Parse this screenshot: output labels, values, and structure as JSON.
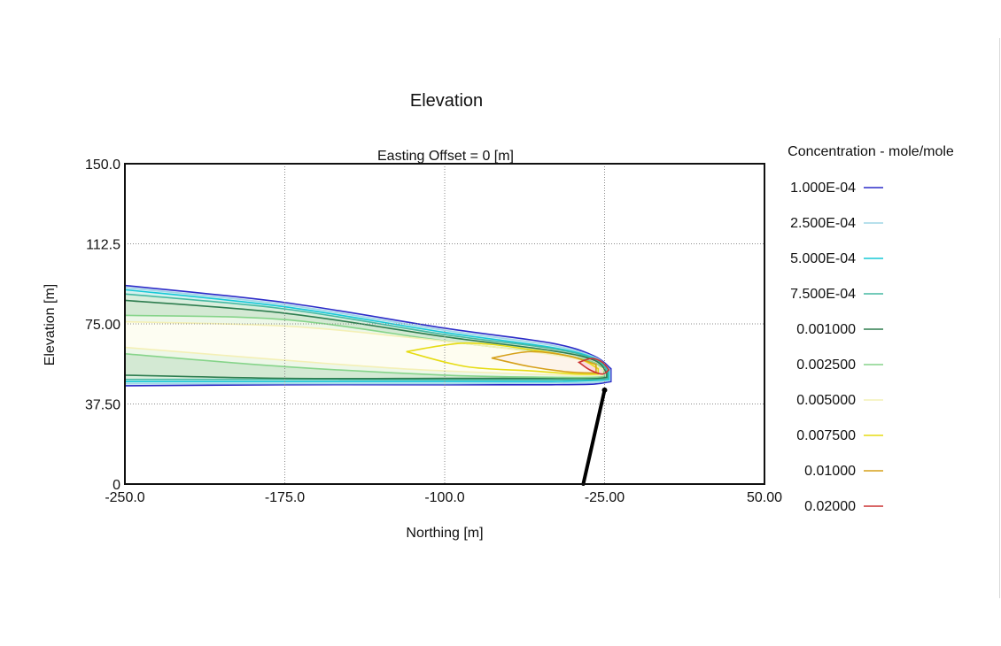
{
  "chart_data": {
    "type": "contour",
    "title": "Elevation",
    "subtitle": "Easting Offset = 0 [m]",
    "xlabel": "Northing [m]",
    "ylabel": "Elevation [m]",
    "xlim": [
      -250,
      50
    ],
    "ylim": [
      0,
      150
    ],
    "x_ticks": [
      "-250.0",
      "-175.0",
      "-100.0",
      "-25.00",
      "50.00"
    ],
    "x_tick_values": [
      -250,
      -175,
      -100,
      -25,
      50
    ],
    "y_ticks": [
      "0",
      "37.50",
      "75.00",
      "112.5",
      "150.0"
    ],
    "y_tick_values": [
      0,
      37.5,
      75,
      112.5,
      150
    ],
    "grid": true,
    "legend_position": "right",
    "legend_title": "Concentration - mole/mole",
    "legend": [
      {
        "label": "1.000E-04",
        "color": "#2b2bc8"
      },
      {
        "label": "2.500E-04",
        "color": "#9fd6e6"
      },
      {
        "label": "5.000E-04",
        "color": "#17c8d6"
      },
      {
        "label": "7.500E-04",
        "color": "#45b9a2"
      },
      {
        "label": "0.001000",
        "color": "#2e7d4f"
      },
      {
        "label": "0.002500",
        "color": "#86d48a"
      },
      {
        "label": "0.005000",
        "color": "#f4f0b6"
      },
      {
        "label": "0.007500",
        "color": "#e6dc14"
      },
      {
        "label": "0.01000",
        "color": "#d6a01a"
      },
      {
        "label": "0.02000",
        "color": "#cc3333"
      }
    ],
    "contours": [
      {
        "level": "1.000E-04",
        "color": "#2b2bc8",
        "fill": "#dfe9f7",
        "upper": [
          [
            -250,
            93
          ],
          [
            -175,
            85
          ],
          [
            -100,
            73
          ],
          [
            -50,
            66
          ],
          [
            -30,
            60
          ],
          [
            -22,
            54
          ]
        ],
        "lower": [
          [
            -250,
            46
          ],
          [
            -175,
            46.5
          ],
          [
            -100,
            46.5
          ],
          [
            -50,
            46.5
          ],
          [
            -30,
            46.8
          ],
          [
            -22,
            48
          ]
        ]
      },
      {
        "level": "2.500E-04",
        "color": "#9fd6e6",
        "fill": "#d6f1f4",
        "upper": [
          [
            -250,
            92
          ],
          [
            -175,
            84
          ],
          [
            -100,
            72
          ],
          [
            -50,
            65
          ],
          [
            -30,
            59.5
          ],
          [
            -22.5,
            53.5
          ]
        ],
        "lower": [
          [
            -250,
            47
          ],
          [
            -175,
            47
          ],
          [
            -100,
            47
          ],
          [
            -50,
            47.3
          ],
          [
            -30,
            47.5
          ],
          [
            -22.5,
            48.5
          ]
        ]
      },
      {
        "level": "5.000E-04",
        "color": "#17c8d6",
        "fill": "#d4f1ee",
        "upper": [
          [
            -250,
            91
          ],
          [
            -175,
            83
          ],
          [
            -100,
            71
          ],
          [
            -50,
            64
          ],
          [
            -30,
            59
          ],
          [
            -23,
            53
          ]
        ],
        "lower": [
          [
            -250,
            48
          ],
          [
            -175,
            48
          ],
          [
            -100,
            48
          ],
          [
            -50,
            48
          ],
          [
            -30,
            48.5
          ],
          [
            -23,
            49
          ]
        ]
      },
      {
        "level": "7.500E-04",
        "color": "#45b9a2",
        "fill": "#d9eedd",
        "upper": [
          [
            -250,
            89
          ],
          [
            -175,
            82
          ],
          [
            -100,
            70
          ],
          [
            -50,
            63.5
          ],
          [
            -30,
            58.5
          ],
          [
            -23.5,
            52.5
          ]
        ],
        "lower": [
          [
            -250,
            49
          ],
          [
            -175,
            49
          ],
          [
            -100,
            48.8
          ],
          [
            -50,
            48.8
          ],
          [
            -30,
            49
          ],
          [
            -23.5,
            49.5
          ]
        ]
      },
      {
        "level": "0.001000",
        "color": "#2e7d4f",
        "fill": "#d3e9d3",
        "upper": [
          [
            -250,
            86
          ],
          [
            -175,
            80
          ],
          [
            -100,
            69
          ],
          [
            -50,
            62.5
          ],
          [
            -30,
            58
          ],
          [
            -24,
            52
          ]
        ],
        "lower": [
          [
            -250,
            51
          ],
          [
            -175,
            49.5
          ],
          [
            -100,
            49.5
          ],
          [
            -50,
            49.5
          ],
          [
            -30,
            49.5
          ],
          [
            -24,
            50
          ]
        ]
      },
      {
        "level": "0.002500",
        "color": "#86d48a",
        "fill": "#edf7e8",
        "upper": [
          [
            -250,
            79
          ],
          [
            -175,
            77
          ],
          [
            -100,
            67
          ],
          [
            -50,
            61
          ],
          [
            -30,
            57
          ],
          [
            -25,
            51.5
          ]
        ],
        "lower": [
          [
            -250,
            61
          ],
          [
            -175,
            55
          ],
          [
            -100,
            51
          ],
          [
            -50,
            50
          ],
          [
            -30,
            50
          ],
          [
            -25,
            50.5
          ]
        ]
      },
      {
        "level": "0.005000",
        "color": "#f4f0b6",
        "fill": "#fdfdf2",
        "upper": [
          [
            -250,
            76
          ],
          [
            -175,
            74
          ],
          [
            -120,
            69
          ],
          [
            -75,
            64
          ],
          [
            -40,
            59
          ],
          [
            -26,
            54
          ]
        ],
        "lower": [
          [
            -250,
            64
          ],
          [
            -175,
            58
          ],
          [
            -120,
            54
          ],
          [
            -75,
            52
          ],
          [
            -40,
            51
          ],
          [
            -26,
            51
          ]
        ]
      },
      {
        "level": "0.007500",
        "color": "#e6dc14",
        "fill": "#fefdf0",
        "upper": [
          [
            -118,
            62
          ],
          [
            -90,
            66
          ],
          [
            -60,
            63
          ],
          [
            -38,
            59
          ],
          [
            -28,
            54
          ]
        ],
        "lower": [
          [
            -118,
            62
          ],
          [
            -90,
            55
          ],
          [
            -60,
            53
          ],
          [
            -38,
            51.5
          ],
          [
            -28,
            51.5
          ]
        ]
      },
      {
        "level": "0.01000",
        "color": "#d6a01a",
        "fill": "#fdf4ea",
        "upper": [
          [
            -78,
            59
          ],
          [
            -60,
            62
          ],
          [
            -42,
            60
          ],
          [
            -29,
            56
          ]
        ],
        "lower": [
          [
            -78,
            59
          ],
          [
            -60,
            55
          ],
          [
            -42,
            52.5
          ],
          [
            -29,
            52
          ]
        ]
      },
      {
        "level": "0.02000",
        "color": "#cc3333",
        "fill": "#fadadd",
        "upper": [
          [
            -37,
            57
          ],
          [
            -31,
            58.8
          ],
          [
            -26,
            57
          ],
          [
            -23,
            53.5
          ]
        ],
        "lower": [
          [
            -37,
            57
          ],
          [
            -32,
            53.5
          ],
          [
            -26,
            51.5
          ],
          [
            -23,
            53.5
          ]
        ]
      }
    ],
    "release_line": {
      "color": "#000000",
      "points": [
        [
          -35,
          0
        ],
        [
          -25,
          44
        ]
      ]
    }
  }
}
